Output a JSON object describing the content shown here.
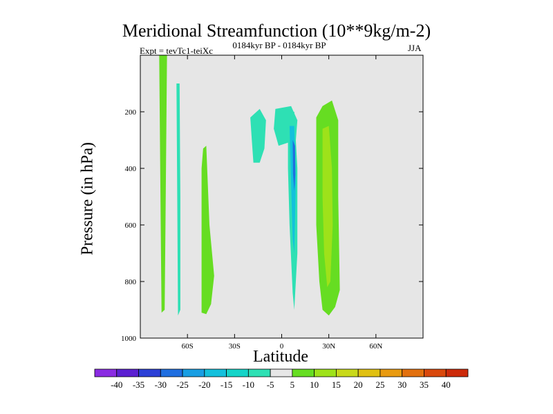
{
  "chart_data": {
    "type": "contour",
    "title": "Meridional Streamfunction (10**9kg/m-2)",
    "experiment": "Expt = tevTc1-teiXc",
    "period": "0184kyr BP - 0184kyr BP",
    "season": "JJA",
    "xlabel": "Latitude",
    "ylabel": "Pressure (in hPa)",
    "xlim": [
      -90,
      90
    ],
    "ylim": [
      1000,
      0
    ],
    "x_ticks": [
      {
        "value": -60,
        "label": "60S"
      },
      {
        "value": -30,
        "label": "30S"
      },
      {
        "value": 0,
        "label": "0"
      },
      {
        "value": 30,
        "label": "30N"
      },
      {
        "value": 60,
        "label": "60N"
      }
    ],
    "y_ticks": [
      {
        "value": 200,
        "label": "200"
      },
      {
        "value": 400,
        "label": "400"
      },
      {
        "value": 600,
        "label": "600"
      },
      {
        "value": 800,
        "label": "800"
      },
      {
        "value": 1000,
        "label": "1000"
      }
    ],
    "colorbar": {
      "levels": [
        "-40",
        "-35",
        "-30",
        "-25",
        "-20",
        "-15",
        "-10",
        "-5",
        "5",
        "10",
        "15",
        "20",
        "25",
        "30",
        "35",
        "40"
      ],
      "colors": [
        "#8a2be2",
        "#5b1fd1",
        "#2b3fd6",
        "#1f6ee0",
        "#189ee3",
        "#13c0dc",
        "#14d4c8",
        "#2ee0b4",
        "#e6e6e6",
        "#66dd22",
        "#9ee21a",
        "#c8d91a",
        "#e0c012",
        "#e89a10",
        "#e2700e",
        "#d9480c",
        "#cc2a0a"
      ]
    },
    "fields": [
      {
        "name": "sh-polar-positive",
        "value": 5,
        "points": [
          [
            -78,
            0
          ],
          [
            -73,
            0
          ],
          [
            -73.5,
            300
          ],
          [
            -74,
            600
          ],
          [
            -74.5,
            900
          ],
          [
            -76.5,
            910
          ],
          [
            -77,
            600
          ],
          [
            -77.5,
            300
          ]
        ]
      },
      {
        "name": "sh-polar-negative",
        "value": -5,
        "points": [
          [
            -69,
            0
          ],
          [
            -63,
            0
          ],
          [
            -62.5,
            300
          ],
          [
            -62,
            600
          ],
          [
            -62,
            920
          ],
          [
            -64,
            960
          ],
          [
            -66,
            900
          ],
          [
            -68.5,
            600
          ],
          [
            -69.5,
            300
          ]
        ]
      },
      {
        "name": "sh-polar-core",
        "value": -10,
        "points": [
          [
            -67,
            100
          ],
          [
            -65,
            100
          ],
          [
            -64.5,
            500
          ],
          [
            -64.5,
            900
          ],
          [
            -66,
            920
          ],
          [
            -66.5,
            500
          ]
        ]
      },
      {
        "name": "sh-midlat-positive",
        "value": 5,
        "points": [
          [
            -50,
            330
          ],
          [
            -48,
            320
          ],
          [
            -46,
            600
          ],
          [
            -43,
            780
          ],
          [
            -45,
            880
          ],
          [
            -48,
            915
          ],
          [
            -51,
            910
          ],
          [
            -51,
            700
          ],
          [
            -51,
            400
          ]
        ]
      },
      {
        "name": "tropical-cell",
        "value": -5,
        "points": [
          [
            -23,
            310
          ],
          [
            -22,
            200
          ],
          [
            -17,
            170
          ],
          [
            -12,
            150
          ],
          [
            -4,
            140
          ],
          [
            5,
            145
          ],
          [
            11,
            160
          ],
          [
            14,
            200
          ],
          [
            13,
            350
          ],
          [
            12,
            500
          ],
          [
            11,
            700
          ],
          [
            11,
            900
          ],
          [
            10,
            930
          ],
          [
            8,
            950
          ],
          [
            7,
            900
          ],
          [
            6,
            700
          ],
          [
            4,
            550
          ],
          [
            3,
            430
          ],
          [
            -4,
            420
          ],
          [
            -9,
            450
          ],
          [
            -11,
            640
          ],
          [
            -10,
            800
          ],
          [
            -8,
            880
          ],
          [
            -6,
            970
          ],
          [
            -9,
            960
          ],
          [
            -12,
            840
          ],
          [
            -14,
            700
          ],
          [
            -13,
            500
          ],
          [
            -16,
            400
          ],
          [
            -17,
            780
          ],
          [
            -19,
            920
          ],
          [
            -21,
            860
          ],
          [
            -22,
            600
          ],
          [
            -24,
            450
          ]
        ]
      },
      {
        "name": "tropical-cell-left",
        "value": -10,
        "points": [
          [
            -20,
            220
          ],
          [
            -14,
            190
          ],
          [
            -10,
            230
          ],
          [
            -11,
            330
          ],
          [
            -14,
            380
          ],
          [
            -18,
            380
          ],
          [
            -19,
            300
          ]
        ]
      },
      {
        "name": "tropical-cell-mid",
        "value": -10,
        "points": [
          [
            -4,
            190
          ],
          [
            6,
            180
          ],
          [
            10,
            230
          ],
          [
            9,
            300
          ],
          [
            -2,
            320
          ],
          [
            -5,
            260
          ]
        ]
      },
      {
        "name": "tropical-cell-core",
        "value": -10,
        "points": [
          [
            4,
            200
          ],
          [
            8,
            200
          ],
          [
            10,
            400
          ],
          [
            10,
            700
          ],
          [
            8,
            900
          ],
          [
            7,
            840
          ],
          [
            5,
            600
          ],
          [
            4,
            400
          ]
        ]
      },
      {
        "name": "tropical-cell-blue",
        "value": -20,
        "points": [
          [
            5,
            250
          ],
          [
            8,
            250
          ],
          [
            9,
            450
          ],
          [
            8,
            700
          ],
          [
            7,
            650
          ],
          [
            6,
            450
          ]
        ]
      },
      {
        "name": "tropical-cell-max",
        "value": -30,
        "points": [
          [
            7,
            300
          ],
          [
            8.5,
            320
          ],
          [
            8.7,
            420
          ],
          [
            8,
            480
          ],
          [
            7.2,
            420
          ]
        ]
      },
      {
        "name": "nh-top-strip",
        "value": -5,
        "points": [
          [
            17,
            0
          ],
          [
            20,
            0
          ],
          [
            19.5,
            60
          ],
          [
            18,
            150
          ],
          [
            17.5,
            60
          ]
        ]
      },
      {
        "name": "nh-subtropical-positive",
        "value": 5,
        "points": [
          [
            22,
            220
          ],
          [
            26,
            180
          ],
          [
            32,
            160
          ],
          [
            36,
            230
          ],
          [
            36,
            500
          ],
          [
            37,
            830
          ],
          [
            34,
            890
          ],
          [
            30,
            920
          ],
          [
            26,
            900
          ],
          [
            24,
            800
          ],
          [
            22,
            600
          ]
        ]
      },
      {
        "name": "nh-subtropical-core",
        "value": 10,
        "points": [
          [
            26,
            260
          ],
          [
            30,
            250
          ],
          [
            32,
            400
          ],
          [
            32.5,
            600
          ],
          [
            31,
            800
          ],
          [
            29,
            820
          ],
          [
            27,
            700
          ],
          [
            26,
            500
          ]
        ]
      },
      {
        "name": "nh-midlat-negative",
        "value": -5,
        "points": [
          [
            42,
            250
          ],
          [
            44,
            180
          ],
          [
            47,
            260
          ],
          [
            48,
            500
          ],
          [
            48,
            880
          ],
          [
            46,
            890
          ],
          [
            43,
            860
          ],
          [
            42,
            600
          ]
        ]
      }
    ]
  }
}
